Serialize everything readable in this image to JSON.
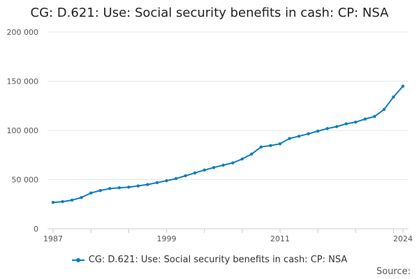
{
  "chart_data": {
    "type": "line",
    "title": "CG: D.621: Use: Social security benefits in cash: CP: NSA",
    "xlabel": "",
    "ylabel": "",
    "x": [
      1987,
      1988,
      1989,
      1990,
      1991,
      1992,
      1993,
      1994,
      1995,
      1996,
      1997,
      1998,
      1999,
      2000,
      2001,
      2002,
      2003,
      2004,
      2005,
      2006,
      2007,
      2008,
      2009,
      2010,
      2011,
      2012,
      2013,
      2014,
      2015,
      2016,
      2017,
      2018,
      2019,
      2020,
      2021,
      2022,
      2023,
      2024
    ],
    "xlim": [
      1987,
      2024
    ],
    "x_tick_labels": [
      "1987",
      "1999",
      "2011",
      "2024"
    ],
    "x_tick_values": [
      1987,
      1999,
      2011,
      2024
    ],
    "ylim": [
      0,
      200000
    ],
    "y_tick_values": [
      0,
      50000,
      100000,
      150000,
      200000
    ],
    "y_tick_labels": [
      "0",
      "50 000",
      "100 000",
      "150 000",
      "200 000"
    ],
    "grid": true,
    "legend_position": "bottom",
    "series": [
      {
        "name": "CG: D.621: Use: Social security benefits in cash: CP: NSA",
        "color": "#0b7dc1",
        "values": [
          26800,
          27600,
          29100,
          31800,
          36400,
          38900,
          40900,
          41700,
          42300,
          43600,
          45000,
          46900,
          48900,
          51000,
          53900,
          56800,
          59700,
          62300,
          64700,
          67000,
          71000,
          76000,
          83200,
          84600,
          86400,
          91800,
          94100,
          96600,
          99300,
          101900,
          103900,
          106700,
          108500,
          111600,
          114200,
          121300,
          134000,
          145000
        ]
      }
    ]
  },
  "legend": {
    "label": "CG: D.621: Use: Social security benefits in cash: CP: NSA",
    "color": "#0b7dc1"
  },
  "source": {
    "label": "Source:"
  }
}
